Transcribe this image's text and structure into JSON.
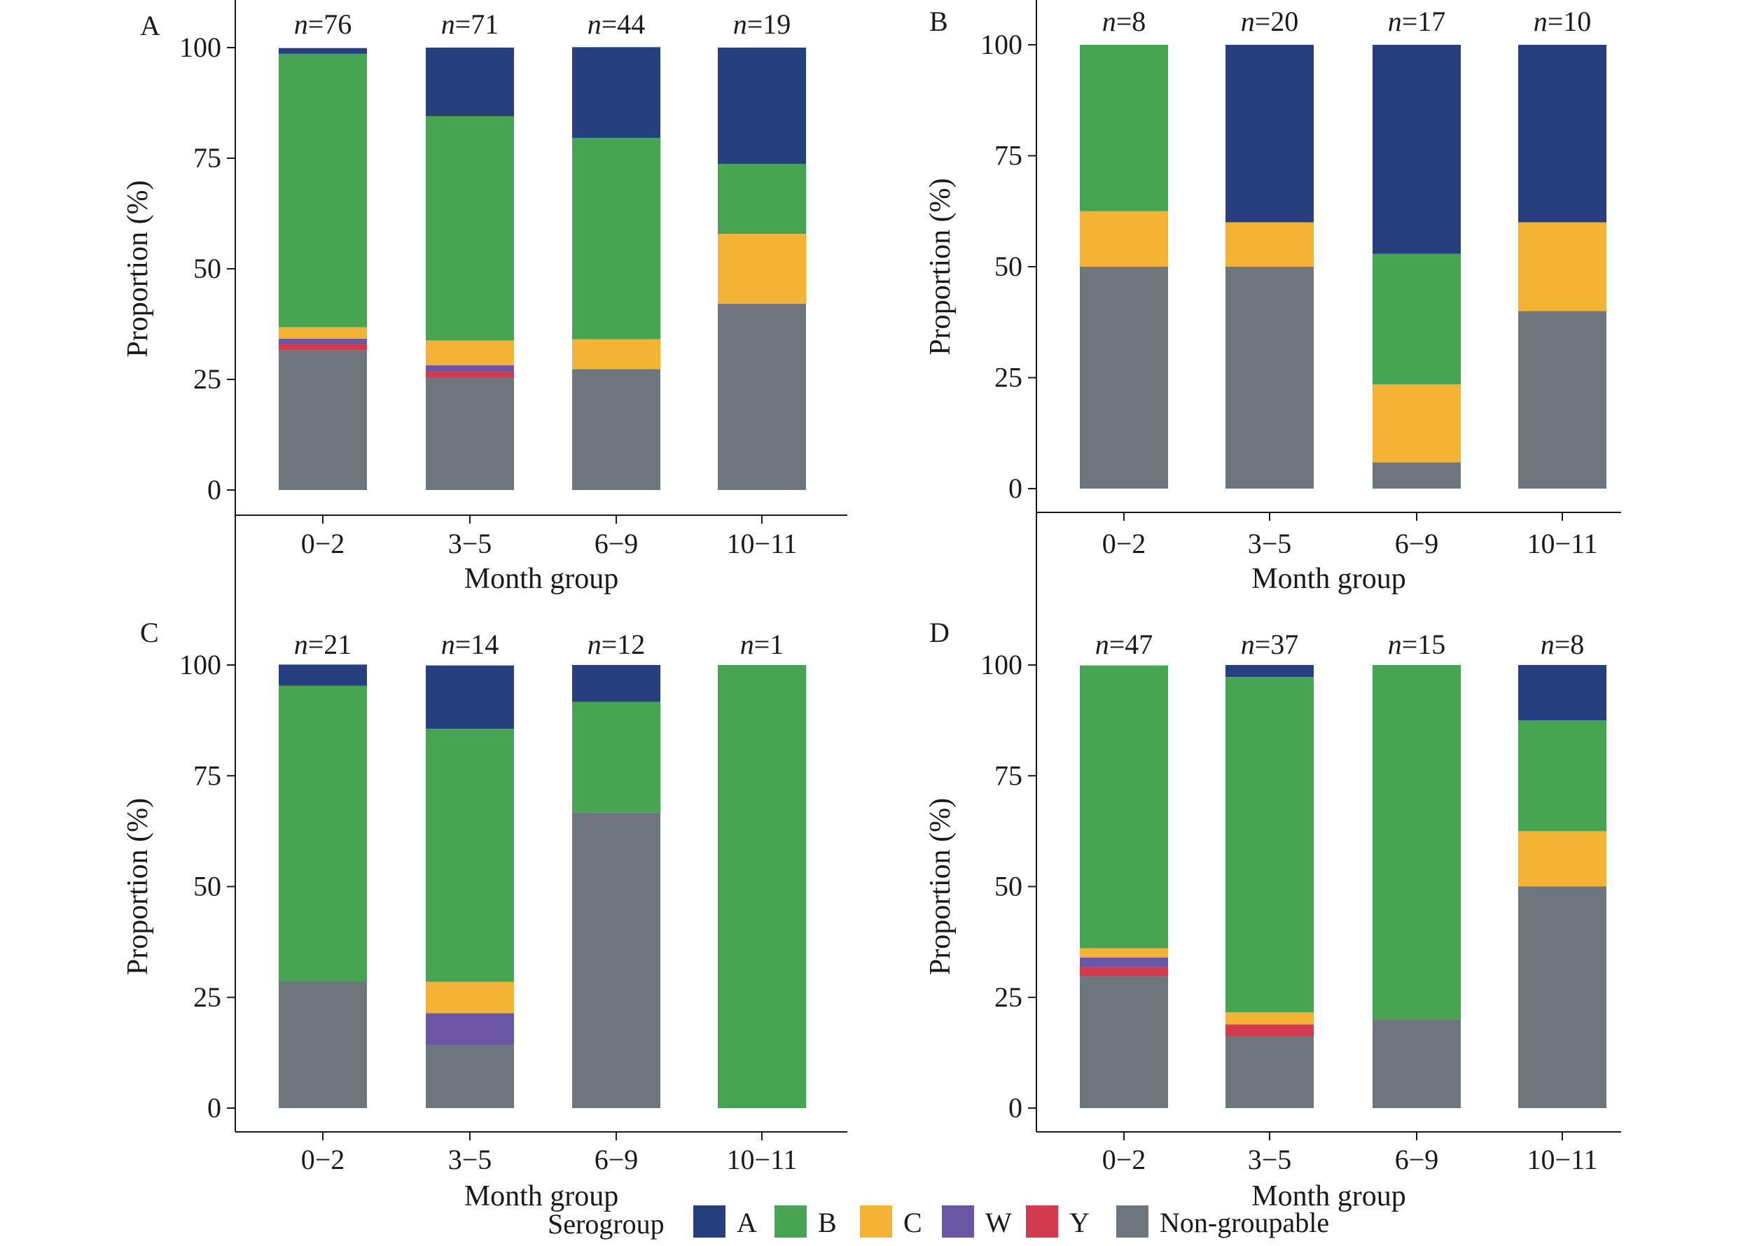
{
  "chart_data": [
    {
      "type": "bar",
      "stacked": true,
      "panel": "A",
      "categories": [
        "0−2",
        "3−5",
        "6−9",
        "10−11"
      ],
      "n_labels": [
        "n=76",
        "n=71",
        "n=44",
        "n=19"
      ],
      "xlabel": "Month group",
      "ylabel": "Proportion (%)",
      "ylim": [
        0,
        100
      ],
      "yticks": [
        "0",
        "25",
        "50",
        "75",
        "100"
      ],
      "series": [
        {
          "name": "Non-groupable",
          "values": [
            31.6,
            25.4,
            27.3,
            42.1
          ]
        },
        {
          "name": "Y",
          "values": [
            1.3,
            1.4,
            0,
            0
          ]
        },
        {
          "name": "W",
          "values": [
            1.3,
            1.4,
            0,
            0
          ]
        },
        {
          "name": "C",
          "values": [
            2.6,
            5.6,
            6.8,
            15.8
          ]
        },
        {
          "name": "B",
          "values": [
            61.8,
            50.7,
            45.5,
            15.8
          ]
        },
        {
          "name": "A",
          "values": [
            1.3,
            15.5,
            20.5,
            26.3
          ]
        }
      ]
    },
    {
      "type": "bar",
      "stacked": true,
      "panel": "B",
      "categories": [
        "0−2",
        "3−5",
        "6−9",
        "10−11"
      ],
      "n_labels": [
        "n=8",
        "n=20",
        "n=17",
        "n=10"
      ],
      "xlabel": "Month group",
      "ylabel": "Proportion (%)",
      "ylim": [
        0,
        100
      ],
      "yticks": [
        "0",
        "25",
        "50",
        "75",
        "100"
      ],
      "series": [
        {
          "name": "Non-groupable",
          "values": [
            50,
            50,
            5.9,
            40
          ]
        },
        {
          "name": "Y",
          "values": [
            0,
            0,
            0,
            0
          ]
        },
        {
          "name": "W",
          "values": [
            0,
            0,
            0,
            0
          ]
        },
        {
          "name": "C",
          "values": [
            12.5,
            10,
            17.6,
            20
          ]
        },
        {
          "name": "B",
          "values": [
            37.5,
            0,
            29.4,
            0
          ]
        },
        {
          "name": "A",
          "values": [
            0,
            40,
            47.1,
            40
          ]
        }
      ]
    },
    {
      "type": "bar",
      "stacked": true,
      "panel": "C",
      "categories": [
        "0−2",
        "3−5",
        "6−9",
        "10−11"
      ],
      "n_labels": [
        "n=21",
        "n=14",
        "n=12",
        "n=1"
      ],
      "xlabel": "Month group",
      "ylabel": "Proportion (%)",
      "ylim": [
        0,
        100
      ],
      "yticks": [
        "0",
        "25",
        "50",
        "75",
        "100"
      ],
      "series": [
        {
          "name": "Non-groupable",
          "values": [
            28.6,
            14.3,
            66.7,
            0
          ]
        },
        {
          "name": "Y",
          "values": [
            0,
            0,
            0,
            0
          ]
        },
        {
          "name": "W",
          "values": [
            0,
            7.1,
            0,
            0
          ]
        },
        {
          "name": "C",
          "values": [
            0,
            7.1,
            0,
            0
          ]
        },
        {
          "name": "B",
          "values": [
            66.7,
            57.1,
            25,
            100
          ]
        },
        {
          "name": "A",
          "values": [
            4.8,
            14.3,
            8.3,
            0
          ]
        }
      ]
    },
    {
      "type": "bar",
      "stacked": true,
      "panel": "D",
      "categories": [
        "0−2",
        "3−5",
        "6−9",
        "10−11"
      ],
      "n_labels": [
        "n=47",
        "n=37",
        "n=15",
        "n=8"
      ],
      "xlabel": "Month group",
      "ylabel": "Proportion (%)",
      "ylim": [
        0,
        100
      ],
      "yticks": [
        "0",
        "25",
        "50",
        "75",
        "100"
      ],
      "series": [
        {
          "name": "Non-groupable",
          "values": [
            29.8,
            16.2,
            20,
            50
          ]
        },
        {
          "name": "Y",
          "values": [
            2.1,
            2.7,
            0,
            0
          ]
        },
        {
          "name": "W",
          "values": [
            2.1,
            0,
            0,
            0
          ]
        },
        {
          "name": "C",
          "values": [
            2.1,
            2.7,
            0,
            12.5
          ]
        },
        {
          "name": "B",
          "values": [
            63.8,
            75.7,
            80,
            25
          ]
        },
        {
          "name": "A",
          "values": [
            0,
            2.7,
            0,
            12.5
          ]
        }
      ]
    }
  ],
  "legend": {
    "title": "Serogroup",
    "items": [
      {
        "name": "A",
        "color": "#263f7f"
      },
      {
        "name": "B",
        "color": "#45a550"
      },
      {
        "name": "C",
        "color": "#f5b335"
      },
      {
        "name": "W",
        "color": "#6a56a4"
      },
      {
        "name": "Y",
        "color": "#d23b4d"
      },
      {
        "name": "Non-groupable",
        "color": "#6d767c"
      }
    ]
  }
}
